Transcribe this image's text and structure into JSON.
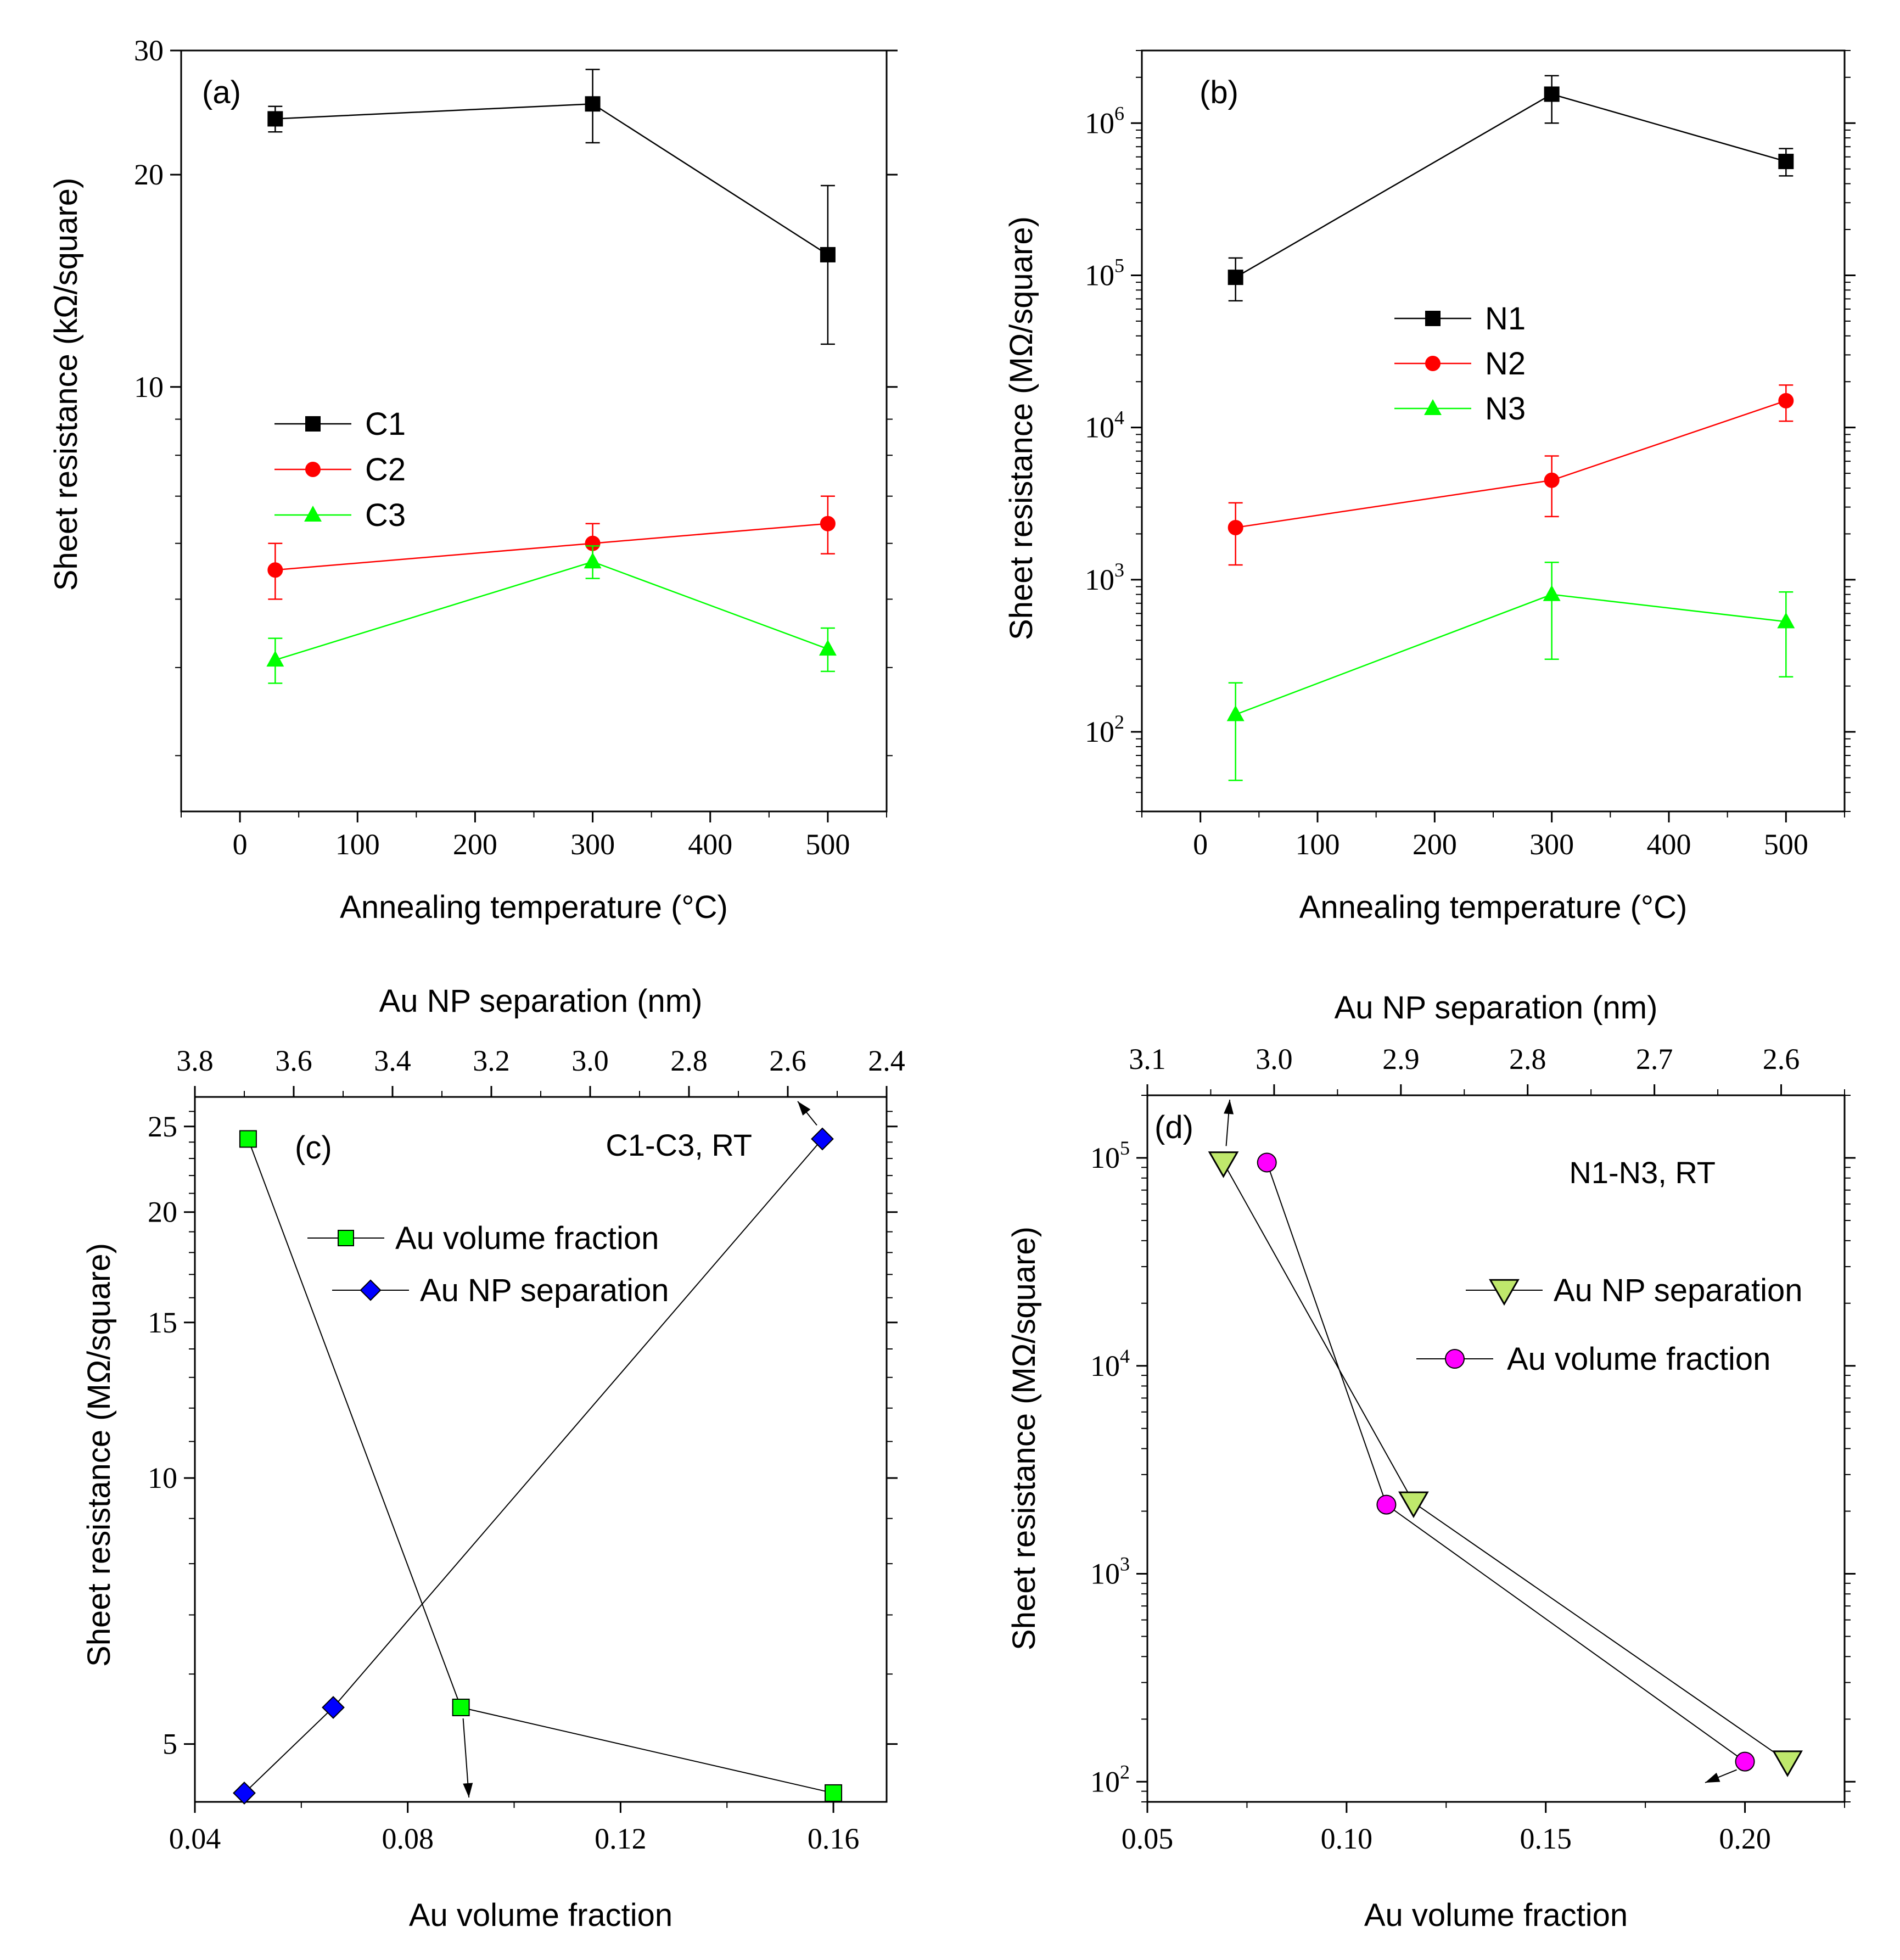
{
  "chart_data": [
    {
      "id": "a",
      "type": "line",
      "panel_label": "(a)",
      "title": "",
      "xlabel": "Annealing temperature (°C)",
      "ylabel": "Sheet resistance (kΩ/square)",
      "xlim": [
        -50,
        550
      ],
      "ylim": [
        2.5,
        30
      ],
      "yscale": "log",
      "xticks": [
        0,
        100,
        200,
        300,
        400,
        500
      ],
      "yticks": [
        10,
        20,
        30
      ],
      "legend_position": "center-left",
      "series": [
        {
          "name": "C1",
          "color": "#000000",
          "marker": "square",
          "x": [
            30,
            300,
            500
          ],
          "y": [
            24.0,
            25.2,
            15.4
          ],
          "err_low": [
            1.0,
            3.0,
            3.9
          ],
          "err_high": [
            1.0,
            3.0,
            3.9
          ]
        },
        {
          "name": "C2",
          "color": "#ff0000",
          "marker": "circle",
          "x": [
            30,
            300,
            500
          ],
          "y": [
            5.5,
            6.0,
            6.4
          ],
          "err_low": [
            0.5,
            0.4,
            0.6
          ],
          "err_high": [
            0.5,
            0.4,
            0.6
          ]
        },
        {
          "name": "C3",
          "color": "#00ff00",
          "marker": "triangle-up",
          "x": [
            30,
            300,
            500
          ],
          "y": [
            4.1,
            5.65,
            4.25
          ],
          "err_low": [
            0.3,
            0.3,
            0.3
          ],
          "err_high": [
            0.3,
            0.3,
            0.3
          ]
        }
      ]
    },
    {
      "id": "b",
      "type": "line",
      "panel_label": "(b)",
      "title": "",
      "xlabel": "Annealing temperature (°C)",
      "ylabel": "Sheet resistance (MΩ/square)",
      "xlim": [
        -50,
        550
      ],
      "ylim": [
        30,
        3000000
      ],
      "yscale": "log",
      "xticks": [
        0,
        100,
        200,
        300,
        400,
        500
      ],
      "yticks": [
        100,
        1000,
        10000,
        100000,
        1000000
      ],
      "legend_position": "center-left",
      "series": [
        {
          "name": "N1",
          "color": "#000000",
          "marker": "square",
          "x": [
            30,
            300,
            500
          ],
          "y": [
            97000,
            1550000,
            560000
          ],
          "y_low": [
            68000,
            1000000,
            450000
          ],
          "y_high": [
            130000,
            2050000,
            680000
          ]
        },
        {
          "name": "N2",
          "color": "#ff0000",
          "marker": "circle",
          "x": [
            30,
            300,
            500
          ],
          "y": [
            2200,
            4500,
            15000
          ],
          "y_low": [
            1250,
            2600,
            11000
          ],
          "y_high": [
            3200,
            6500,
            19000
          ]
        },
        {
          "name": "N3",
          "color": "#00ff00",
          "marker": "triangle-up",
          "x": [
            30,
            300,
            500
          ],
          "y": [
            130,
            800,
            530
          ],
          "y_low": [
            48,
            300,
            230
          ],
          "y_high": [
            210,
            1300,
            830
          ]
        }
      ]
    },
    {
      "id": "c",
      "type": "scatter",
      "panel_label": "(c)",
      "annotation": "C1-C3, RT",
      "xlabel": "Au volume fraction",
      "x2label": "Au NP separation (nm)",
      "ylabel": "Sheet resistance (MΩ/square)",
      "xlim": [
        0.04,
        0.17
      ],
      "x2lim": [
        3.8,
        2.4
      ],
      "ylim": [
        4.3,
        27
      ],
      "yscale": "log",
      "xticks": [
        0.04,
        0.08,
        0.12,
        0.16
      ],
      "x2ticks": [
        3.8,
        3.6,
        3.4,
        3.2,
        3.0,
        2.8,
        2.6,
        2.4
      ],
      "yticks": [
        5,
        10,
        15,
        20,
        25
      ],
      "series": [
        {
          "name": "Au volume fraction",
          "axis": "bottom",
          "color": "#00ff00",
          "marker": "square",
          "x": [
            0.05,
            0.09,
            0.16
          ],
          "y": [
            24.2,
            5.5,
            4.4
          ]
        },
        {
          "name": "Au NP separation",
          "axis": "top",
          "color": "#0000ff",
          "marker": "diamond",
          "x": [
            3.7,
            3.52,
            2.53
          ],
          "y": [
            4.4,
            5.5,
            24.2
          ]
        }
      ]
    },
    {
      "id": "d",
      "type": "scatter",
      "panel_label": "(d)",
      "annotation": "N1-N3, RT",
      "xlabel": "Au volume fraction",
      "x2label": "Au NP separation (nm)",
      "ylabel": "Sheet resistance (MΩ/square)",
      "xlim": [
        0.05,
        0.225
      ],
      "x2lim": [
        3.1,
        2.55
      ],
      "ylim": [
        80,
        200000
      ],
      "yscale": "log",
      "xticks": [
        0.05,
        0.1,
        0.15,
        0.2
      ],
      "x2ticks": [
        3.1,
        3.0,
        2.9,
        2.8,
        2.7,
        2.6
      ],
      "yticks": [
        100,
        1000,
        10000,
        100000
      ],
      "series": [
        {
          "name": "Au NP separation",
          "axis": "top",
          "color": "#bfe86c",
          "marker": "triangle-down",
          "x": [
            3.04,
            2.89,
            2.595
          ],
          "y": [
            95000,
            2200,
            125
          ]
        },
        {
          "name": "Au volume fraction",
          "axis": "bottom",
          "color": "#ff00ff",
          "marker": "circle",
          "x": [
            0.08,
            0.11,
            0.2
          ],
          "y": [
            95000,
            2150,
            125
          ]
        }
      ]
    }
  ]
}
